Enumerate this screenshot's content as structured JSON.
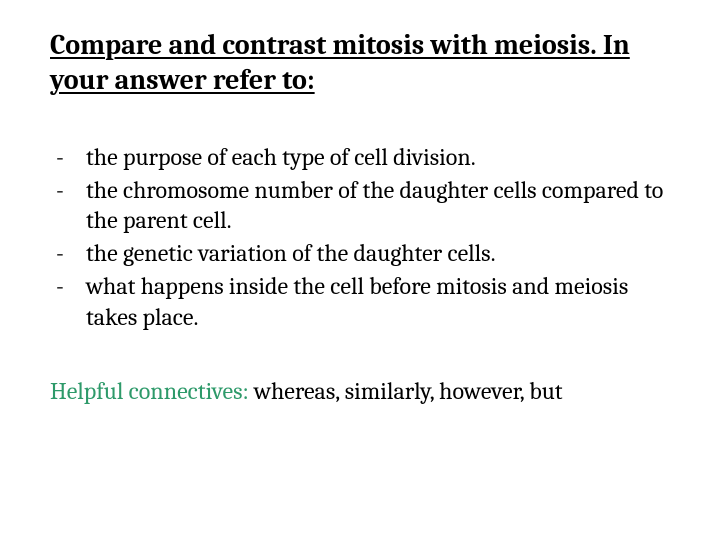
{
  "title": "Compare and contrast mitosis with meiosis. In your answer refer to:",
  "bullets": [
    "the purpose of each type of cell division.",
    "the chromosome number of the daughter cells compared to the parent cell.",
    "the genetic variation of the daughter cells.",
    "what happens inside the cell before mitosis and meiosis takes place."
  ],
  "footer": {
    "label": "Helpful connectives:",
    "text": " whereas, similarly, however, but"
  },
  "colors": {
    "text": "#000000",
    "accent": "#2e9a6a",
    "background": "#ffffff"
  },
  "typography": {
    "title_fontsize": 28,
    "title_weight": 700,
    "body_fontsize": 24,
    "font_family": "Cambria, Georgia, serif"
  }
}
